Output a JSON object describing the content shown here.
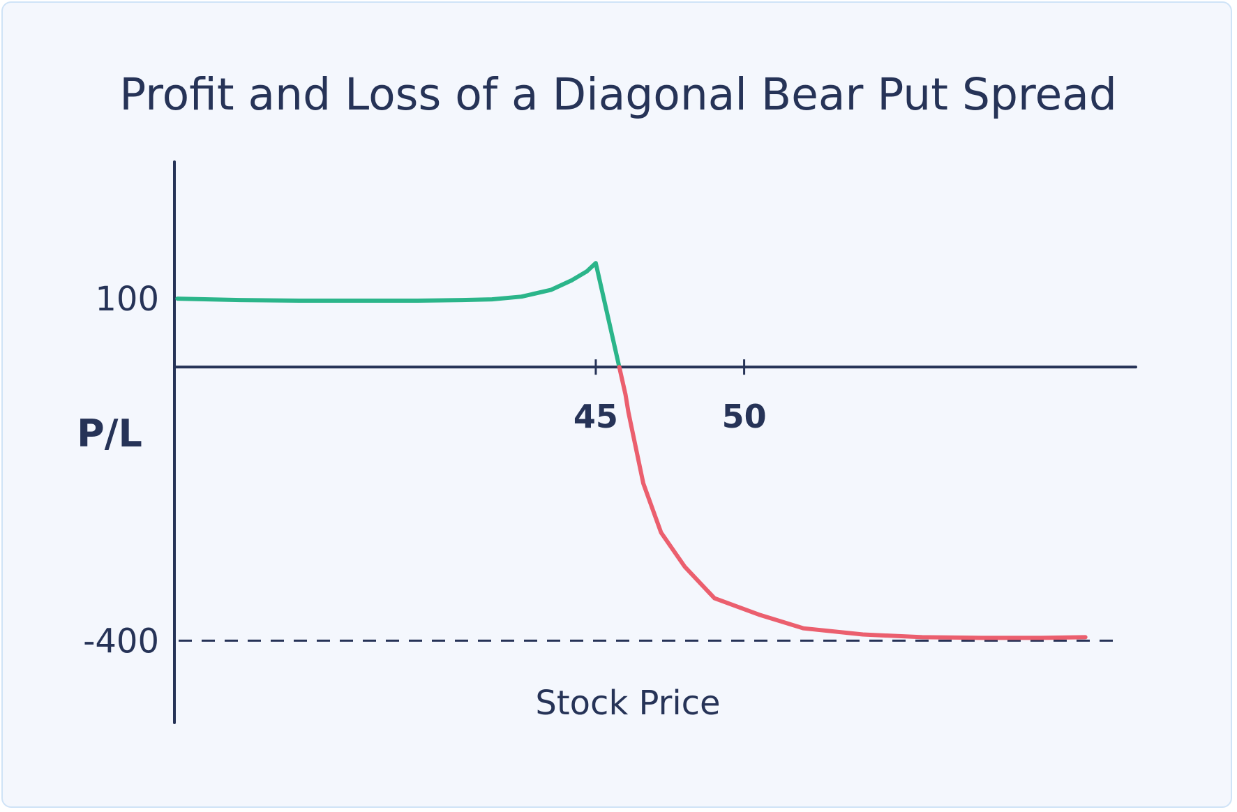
{
  "chart_data": {
    "type": "line",
    "title": "Profit and Loss of a Diagonal Bear Put Spread",
    "xlabel": "Stock Price",
    "ylabel": "P/L",
    "x_ticks": [
      45,
      50
    ],
    "y_ticks": [
      100,
      -400
    ],
    "xlim": [
      30.8,
      63.2
    ],
    "ylim": [
      -520,
      300
    ],
    "reference_lines": [
      {
        "y": -400,
        "style": "dashed"
      }
    ],
    "colors": {
      "profit": "#2bb58a",
      "loss": "#eb5f6e",
      "axis": "#263357",
      "background": "#f4f7fd",
      "border": "#cfe3f7"
    },
    "series": [
      {
        "values_x": [
          30.9,
          33.0,
          35.0,
          37.0,
          39.0,
          40.5,
          41.5,
          42.5,
          43.5,
          44.2,
          44.7,
          45.0,
          45.5,
          46.0,
          46.1,
          46.6,
          47.2,
          48.0,
          49.0,
          50.5,
          52.0,
          54.0,
          56.0,
          58.0,
          60.0,
          61.5
        ],
        "values_y": [
          100,
          98,
          97,
          97,
          97,
          98,
          99,
          103,
          113,
          127,
          140,
          152,
          56,
          -40,
          -66,
          -170,
          -242,
          -292,
          -338,
          -362,
          -382,
          -391,
          -395,
          -396,
          -396,
          -395
        ]
      }
    ]
  }
}
